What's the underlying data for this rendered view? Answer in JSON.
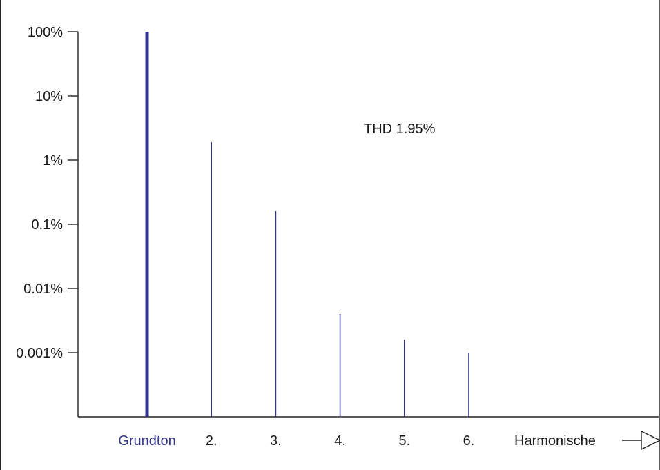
{
  "chart_data": {
    "type": "bar",
    "categories": [
      "Grundton",
      "2.",
      "3.",
      "4.",
      "5.",
      "6."
    ],
    "values": [
      100,
      1.9,
      0.16,
      0.004,
      0.0016,
      0.001
    ],
    "yscale": "log",
    "ylim": [
      0.0001,
      100
    ],
    "yticks": [
      100,
      10,
      1,
      0.1,
      0.01,
      0.001
    ],
    "ytick_labels": [
      "100%",
      "10%",
      "1%",
      "0.1%",
      "0.01%",
      "0.001%"
    ],
    "xlabel": "Harmonische",
    "annotation": "THD 1.95%",
    "grid": false,
    "colors": {
      "bars": "#33338a",
      "fundamental_label": "#33338a",
      "text": "#1a1a1a",
      "axis": "#222222"
    }
  }
}
